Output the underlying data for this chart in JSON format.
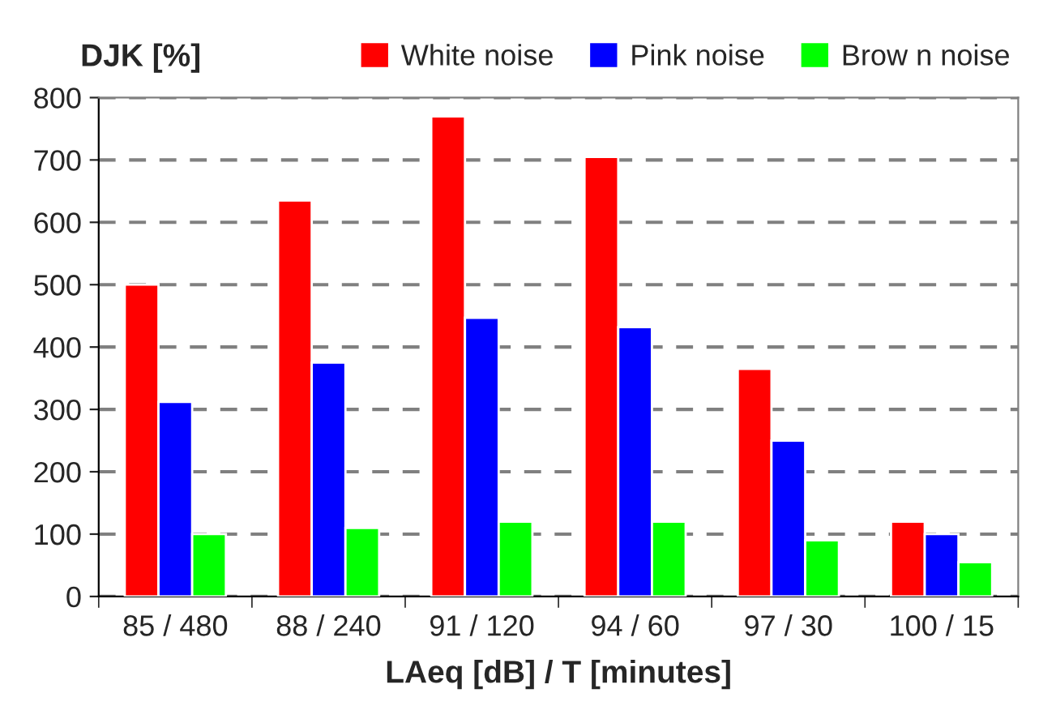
{
  "chart_data": {
    "type": "bar",
    "ylabel": "DJK [%]",
    "xlabel": "LAeq [dB] / T [minutes]",
    "categories": [
      "85 / 480",
      "88 / 240",
      "91 / 120",
      "94 / 60",
      "97 / 30",
      "100 / 15"
    ],
    "series": [
      {
        "name": "White noise",
        "color": "#ff0000",
        "values": [
          500,
          635,
          770,
          705,
          365,
          120
        ]
      },
      {
        "name": "Pink noise",
        "color": "#0000ff",
        "values": [
          312,
          375,
          447,
          432,
          250,
          100
        ]
      },
      {
        "name": "Brow n noise",
        "color": "#00ff00",
        "values": [
          100,
          110,
          120,
          120,
          90,
          55
        ]
      }
    ],
    "ylim": [
      0,
      800
    ],
    "yticks": [
      0,
      100,
      200,
      300,
      400,
      500,
      600,
      700,
      800
    ],
    "grid": "y",
    "legend": "top right"
  }
}
